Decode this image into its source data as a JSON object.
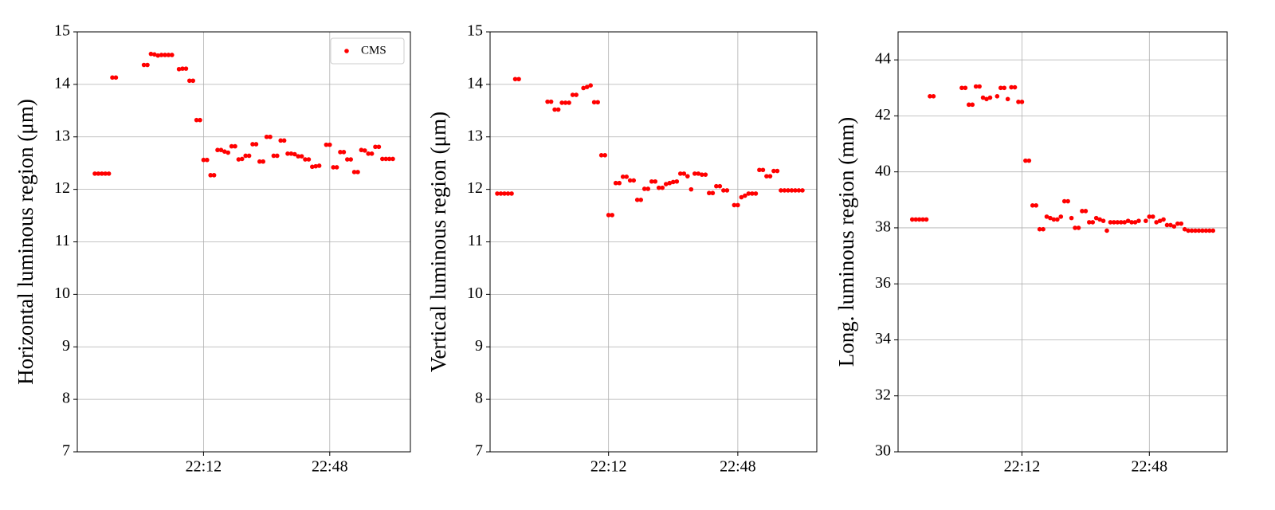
{
  "chart_data": [
    {
      "type": "scatter",
      "ylabel": "Horizontal luminous region (μm)",
      "grid": true,
      "legend": "upper right",
      "xlim": [
        "21:36",
        "23:11"
      ],
      "xticks": [
        "22:12",
        "22:48"
      ],
      "ylim": [
        7,
        15
      ],
      "yticks": [
        7,
        8,
        9,
        10,
        11,
        12,
        13,
        14,
        15
      ],
      "x": [
        "21:41",
        "21:42",
        "21:43",
        "21:44",
        "21:45",
        "21:46",
        "21:47",
        "21:55",
        "21:56",
        "21:57",
        "21:58",
        "21:59",
        "22:00",
        "22:01",
        "22:02",
        "22:03",
        "22:05",
        "22:06",
        "22:07",
        "22:08",
        "22:09",
        "22:10",
        "22:11",
        "22:12",
        "22:13",
        "22:14",
        "22:15",
        "22:16",
        "22:17",
        "22:18",
        "22:19",
        "22:20",
        "22:21",
        "22:22",
        "22:23",
        "22:24",
        "22:25",
        "22:26",
        "22:27",
        "22:28",
        "22:29",
        "22:30",
        "22:31",
        "22:32",
        "22:33",
        "22:34",
        "22:35",
        "22:36",
        "22:37",
        "22:38",
        "22:39",
        "22:40",
        "22:41",
        "22:42",
        "22:43",
        "22:44",
        "22:45",
        "22:47",
        "22:48",
        "22:49",
        "22:50",
        "22:51",
        "22:52",
        "22:53",
        "22:54",
        "22:55",
        "22:56",
        "22:57",
        "22:58",
        "22:59",
        "23:00",
        "23:01",
        "23:02",
        "23:03",
        "23:04",
        "23:05",
        "23:06"
      ],
      "series": [
        {
          "name": "CMS",
          "color": "#ff0000",
          "values": [
            12.3,
            12.3,
            12.3,
            12.3,
            12.3,
            14.13,
            14.13,
            14.37,
            14.37,
            14.58,
            14.57,
            14.55,
            14.56,
            14.56,
            14.56,
            14.56,
            14.29,
            14.3,
            14.3,
            14.07,
            14.07,
            13.32,
            13.32,
            12.56,
            12.56,
            12.27,
            12.27,
            12.75,
            12.75,
            12.72,
            12.7,
            12.82,
            12.82,
            12.57,
            12.58,
            12.64,
            12.64,
            12.86,
            12.86,
            12.53,
            12.53,
            13.0,
            13.0,
            12.64,
            12.64,
            12.93,
            12.93,
            12.68,
            12.68,
            12.67,
            12.63,
            12.63,
            12.57,
            12.57,
            12.43,
            12.44,
            12.45,
            12.85,
            12.85,
            12.42,
            12.42,
            12.71,
            12.71,
            12.57,
            12.57,
            12.33,
            12.33,
            12.75,
            12.74,
            12.68,
            12.68,
            12.81,
            12.81,
            12.58,
            12.58,
            12.58,
            12.58
          ]
        }
      ]
    },
    {
      "type": "scatter",
      "ylabel": "Vertical luminous region (μm)",
      "grid": true,
      "color": "#ff0000",
      "xlim": [
        "21:39",
        "23:10"
      ],
      "xticks": [
        "22:12",
        "22:48"
      ],
      "ylim": [
        7,
        15
      ],
      "yticks": [
        7,
        8,
        9,
        10,
        11,
        12,
        13,
        14,
        15
      ],
      "x": [
        "21:41",
        "21:42",
        "21:43",
        "21:44",
        "21:45",
        "21:46",
        "21:47",
        "21:55",
        "21:56",
        "21:57",
        "21:58",
        "21:59",
        "22:00",
        "22:01",
        "22:02",
        "22:03",
        "22:05",
        "22:06",
        "22:07",
        "22:08",
        "22:09",
        "22:10",
        "22:11",
        "22:12",
        "22:13",
        "22:14",
        "22:15",
        "22:16",
        "22:17",
        "22:18",
        "22:19",
        "22:20",
        "22:21",
        "22:22",
        "22:23",
        "22:24",
        "22:25",
        "22:26",
        "22:27",
        "22:28",
        "22:29",
        "22:30",
        "22:31",
        "22:32",
        "22:33",
        "22:34",
        "22:35",
        "22:36",
        "22:37",
        "22:38",
        "22:39",
        "22:40",
        "22:41",
        "22:42",
        "22:43",
        "22:44",
        "22:45",
        "22:47",
        "22:48",
        "22:49",
        "22:50",
        "22:51",
        "22:52",
        "22:53",
        "22:54",
        "22:55",
        "22:56",
        "22:57",
        "22:58",
        "22:59",
        "23:00",
        "23:01",
        "23:02",
        "23:03",
        "23:04",
        "23:05",
        "23:06"
      ],
      "values": [
        11.92,
        11.92,
        11.92,
        11.92,
        11.92,
        14.1,
        14.1,
        13.67,
        13.67,
        13.52,
        13.52,
        13.65,
        13.65,
        13.65,
        13.8,
        13.8,
        13.93,
        13.95,
        13.98,
        13.66,
        13.66,
        12.65,
        12.65,
        11.51,
        11.51,
        12.12,
        12.12,
        12.24,
        12.24,
        12.17,
        12.17,
        11.8,
        11.8,
        12.01,
        12.01,
        12.15,
        12.15,
        12.03,
        12.03,
        12.1,
        12.12,
        12.14,
        12.15,
        12.3,
        12.3,
        12.25,
        12.0,
        12.3,
        12.3,
        12.28,
        12.28,
        11.93,
        11.93,
        12.06,
        12.06,
        11.98,
        11.98,
        11.7,
        11.7,
        11.85,
        11.88,
        11.92,
        11.92,
        11.92,
        12.37,
        12.37,
        12.25,
        12.25,
        12.35,
        12.35,
        11.98,
        11.98,
        11.98,
        11.98,
        11.98,
        11.98,
        11.98
      ]
    },
    {
      "type": "scatter",
      "ylabel": "Long. luminous region (mm)",
      "grid": true,
      "color": "#ff0000",
      "xlim": [
        "21:37",
        "23:10"
      ],
      "xticks": [
        "22:12",
        "22:48"
      ],
      "ylim": [
        30,
        45
      ],
      "yticks": [
        30,
        32,
        34,
        36,
        38,
        40,
        42,
        44
      ],
      "x": [
        "21:41",
        "21:42",
        "21:43",
        "21:44",
        "21:45",
        "21:46",
        "21:47",
        "21:55",
        "21:56",
        "21:57",
        "21:58",
        "21:59",
        "22:00",
        "22:01",
        "22:02",
        "22:03",
        "22:05",
        "22:06",
        "22:07",
        "22:08",
        "22:09",
        "22:10",
        "22:11",
        "22:12",
        "22:13",
        "22:14",
        "22:15",
        "22:16",
        "22:17",
        "22:18",
        "22:19",
        "22:20",
        "22:21",
        "22:22",
        "22:23",
        "22:24",
        "22:25",
        "22:26",
        "22:27",
        "22:28",
        "22:29",
        "22:30",
        "22:31",
        "22:32",
        "22:33",
        "22:34",
        "22:35",
        "22:36",
        "22:37",
        "22:38",
        "22:39",
        "22:40",
        "22:41",
        "22:42",
        "22:43",
        "22:44",
        "22:45",
        "22:47",
        "22:48",
        "22:49",
        "22:50",
        "22:51",
        "22:52",
        "22:53",
        "22:54",
        "22:55",
        "22:56",
        "22:57",
        "22:58",
        "22:59",
        "23:00",
        "23:01",
        "23:02",
        "23:03",
        "23:04",
        "23:05",
        "23:06"
      ],
      "values": [
        38.3,
        38.3,
        38.3,
        38.3,
        38.3,
        42.7,
        42.7,
        43.0,
        43.0,
        42.4,
        42.4,
        43.05,
        43.05,
        42.65,
        42.6,
        42.65,
        42.7,
        43.0,
        43.0,
        42.6,
        43.02,
        43.02,
        42.5,
        42.5,
        40.4,
        40.4,
        38.8,
        38.8,
        37.95,
        37.95,
        38.4,
        38.35,
        38.3,
        38.3,
        38.4,
        38.95,
        38.95,
        38.35,
        38.0,
        38.0,
        38.6,
        38.6,
        38.2,
        38.2,
        38.35,
        38.3,
        38.25,
        37.9,
        38.2,
        38.2,
        38.2,
        38.2,
        38.2,
        38.25,
        38.2,
        38.2,
        38.25,
        38.25,
        38.4,
        38.4,
        38.2,
        38.25,
        38.3,
        38.1,
        38.1,
        38.05,
        38.15,
        38.15,
        37.95,
        37.9,
        37.9,
        37.9,
        37.9,
        37.9,
        37.9,
        37.9,
        37.9
      ]
    }
  ]
}
